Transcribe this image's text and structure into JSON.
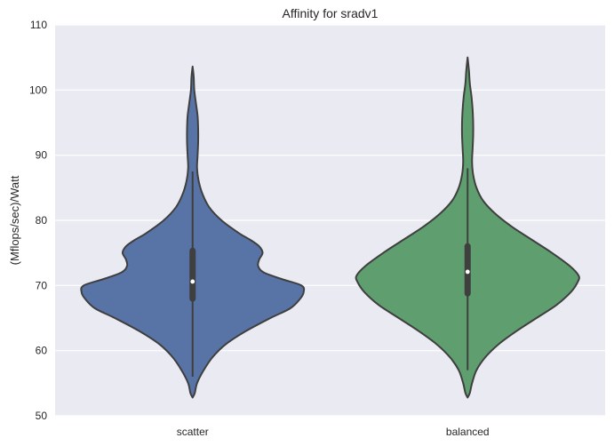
{
  "chart_data": {
    "type": "violin",
    "title": "Affinity for sradv1",
    "xlabel": "",
    "ylabel": "(Mflops/sec)/Watt",
    "ylim": [
      50,
      110
    ],
    "yticks": [
      50,
      60,
      70,
      80,
      90,
      100,
      110
    ],
    "grid": true,
    "categories": [
      "scatter",
      "balanced"
    ],
    "series": [
      {
        "category": "scatter",
        "color": "#5874a6",
        "min": 52.8,
        "max": 103.6,
        "q1": 67.5,
        "median": 70.6,
        "q3": 75.8,
        "whisker_low": 56.0,
        "whisker_high": 87.5,
        "density": [
          [
            52.8,
            0.0
          ],
          [
            53.5,
            0.02
          ],
          [
            55,
            0.04
          ],
          [
            57,
            0.1
          ],
          [
            59,
            0.18
          ],
          [
            61,
            0.3
          ],
          [
            63,
            0.48
          ],
          [
            65,
            0.7
          ],
          [
            66.5,
            0.88
          ],
          [
            68,
            0.97
          ],
          [
            69,
            1.0
          ],
          [
            70,
            0.98
          ],
          [
            71,
            0.8
          ],
          [
            72,
            0.64
          ],
          [
            73,
            0.59
          ],
          [
            74,
            0.6
          ],
          [
            75,
            0.63
          ],
          [
            76,
            0.6
          ],
          [
            77,
            0.52
          ],
          [
            78,
            0.42
          ],
          [
            80,
            0.26
          ],
          [
            82,
            0.15
          ],
          [
            84,
            0.09
          ],
          [
            86,
            0.055
          ],
          [
            88,
            0.04
          ],
          [
            90,
            0.045
          ],
          [
            92,
            0.05
          ],
          [
            94,
            0.05
          ],
          [
            96,
            0.045
          ],
          [
            98,
            0.03
          ],
          [
            100,
            0.015
          ],
          [
            102,
            0.01
          ],
          [
            103.6,
            0.0
          ]
        ]
      },
      {
        "category": "balanced",
        "color": "#5f9e6e",
        "min": 52.8,
        "max": 105.0,
        "q1": 68.3,
        "median": 72.1,
        "q3": 76.5,
        "whisker_low": 57.0,
        "whisker_high": 88.0,
        "density": [
          [
            52.8,
            0.0
          ],
          [
            53.5,
            0.02
          ],
          [
            55,
            0.04
          ],
          [
            57,
            0.08
          ],
          [
            59,
            0.16
          ],
          [
            61,
            0.28
          ],
          [
            63,
            0.44
          ],
          [
            65,
            0.62
          ],
          [
            67,
            0.8
          ],
          [
            69,
            0.93
          ],
          [
            70.5,
            0.99
          ],
          [
            71.5,
            1.0
          ],
          [
            73,
            0.92
          ],
          [
            75,
            0.76
          ],
          [
            77,
            0.58
          ],
          [
            79,
            0.4
          ],
          [
            81,
            0.25
          ],
          [
            83,
            0.14
          ],
          [
            85,
            0.08
          ],
          [
            87,
            0.05
          ],
          [
            89,
            0.04
          ],
          [
            91,
            0.045
          ],
          [
            93,
            0.05
          ],
          [
            95,
            0.05
          ],
          [
            97,
            0.045
          ],
          [
            99,
            0.035
          ],
          [
            101,
            0.02
          ],
          [
            103,
            0.012
          ],
          [
            105,
            0.0
          ]
        ]
      }
    ]
  }
}
